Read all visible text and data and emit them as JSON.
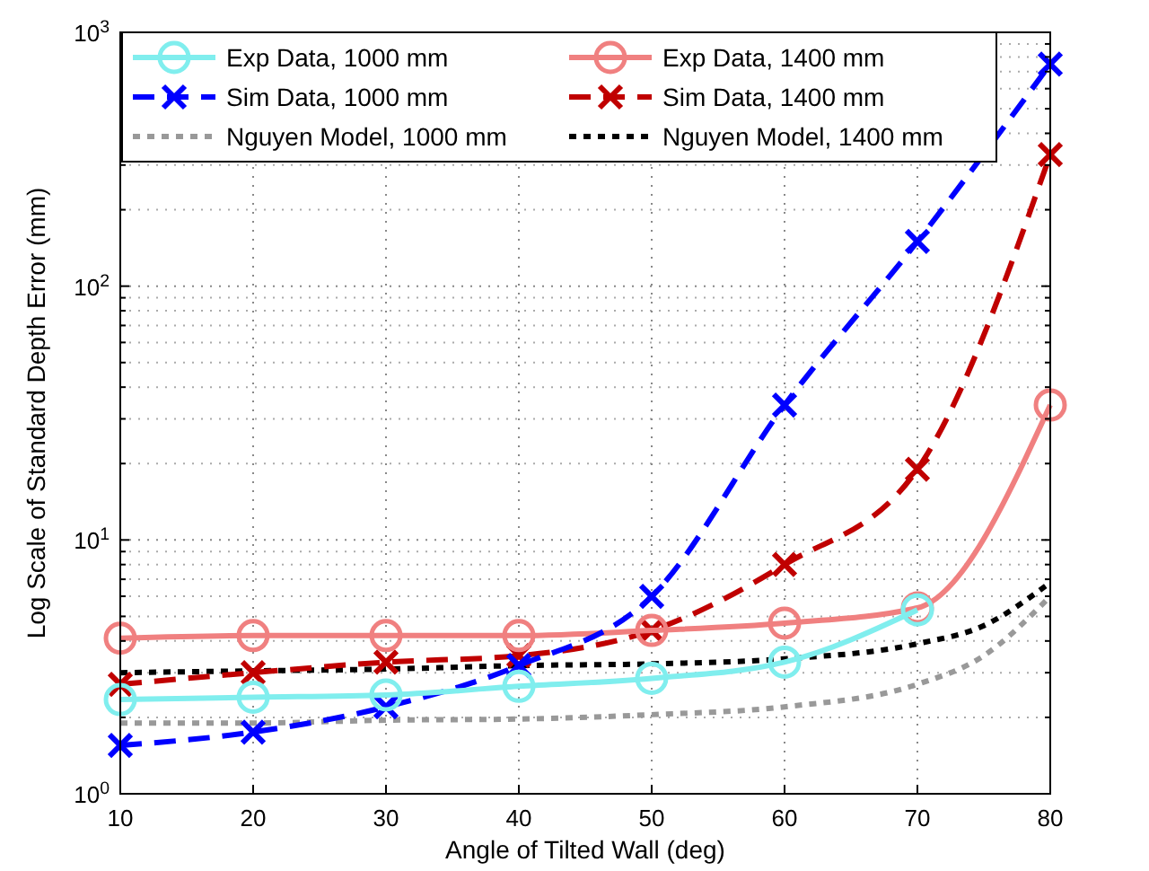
{
  "chart_data": {
    "type": "line",
    "xlabel": "Angle of Tilted Wall (deg)",
    "ylabel": "Log Scale of Standard Depth Error (mm)",
    "x": [
      10,
      20,
      30,
      40,
      50,
      60,
      70,
      80
    ],
    "xlim": [
      10,
      80
    ],
    "xticks": [
      10,
      20,
      30,
      40,
      50,
      60,
      70,
      80
    ],
    "ylim": [
      1,
      1000
    ],
    "yticks": [
      {
        "value": 1,
        "label": "10$^{0}$"
      },
      {
        "value": 10,
        "label": "10$^{1}$"
      },
      {
        "value": 100,
        "label": "10$^{2}$"
      },
      {
        "value": 1000,
        "label": "10$^{3}$"
      }
    ],
    "log": "y",
    "grid": true,
    "legend": "top",
    "series": [
      {
        "name": "Exp Data, 1000 mm",
        "color": "#80eeee",
        "marker": "circle",
        "line_style": "solid",
        "x": [
          10,
          20,
          30,
          40,
          50,
          60,
          70
        ],
        "values": [
          2.35,
          2.4,
          2.45,
          2.65,
          2.85,
          3.3,
          5.3
        ]
      },
      {
        "name": "Sim Data, 1000 mm",
        "color": "#0000ff",
        "marker": "cross",
        "line_style": "dashed",
        "values": [
          1.55,
          1.75,
          2.2,
          3.2,
          6,
          34,
          150,
          750
        ]
      },
      {
        "name": "Nguyen Model, 1000 mm",
        "color": "#999999",
        "marker": "none",
        "line_style": "dotted",
        "x": [
          10,
          20,
          30,
          40,
          50,
          60,
          70,
          75,
          80
        ],
        "values": [
          1.9,
          1.9,
          1.95,
          1.97,
          2.05,
          2.2,
          2.7,
          3.5,
          6
        ]
      },
      {
        "name": "Exp Data, 1400 mm",
        "color": "#f08080",
        "marker": "circle",
        "line_style": "solid",
        "values": [
          4.1,
          4.2,
          4.2,
          4.2,
          4.4,
          4.7,
          5.4,
          34
        ]
      },
      {
        "name": "Sim Data, 1400 mm",
        "color": "#c00000",
        "marker": "cross",
        "line_style": "dashed",
        "values": [
          2.7,
          3.0,
          3.3,
          3.5,
          4.4,
          8,
          19,
          330
        ]
      },
      {
        "name": "Nguyen Model, 1400 mm",
        "color": "#000000",
        "marker": "none",
        "line_style": "dotted",
        "x": [
          10,
          20,
          30,
          40,
          50,
          60,
          70,
          75,
          80
        ],
        "values": [
          3.0,
          3.05,
          3.1,
          3.2,
          3.25,
          3.4,
          3.9,
          4.6,
          6.8
        ]
      }
    ]
  }
}
